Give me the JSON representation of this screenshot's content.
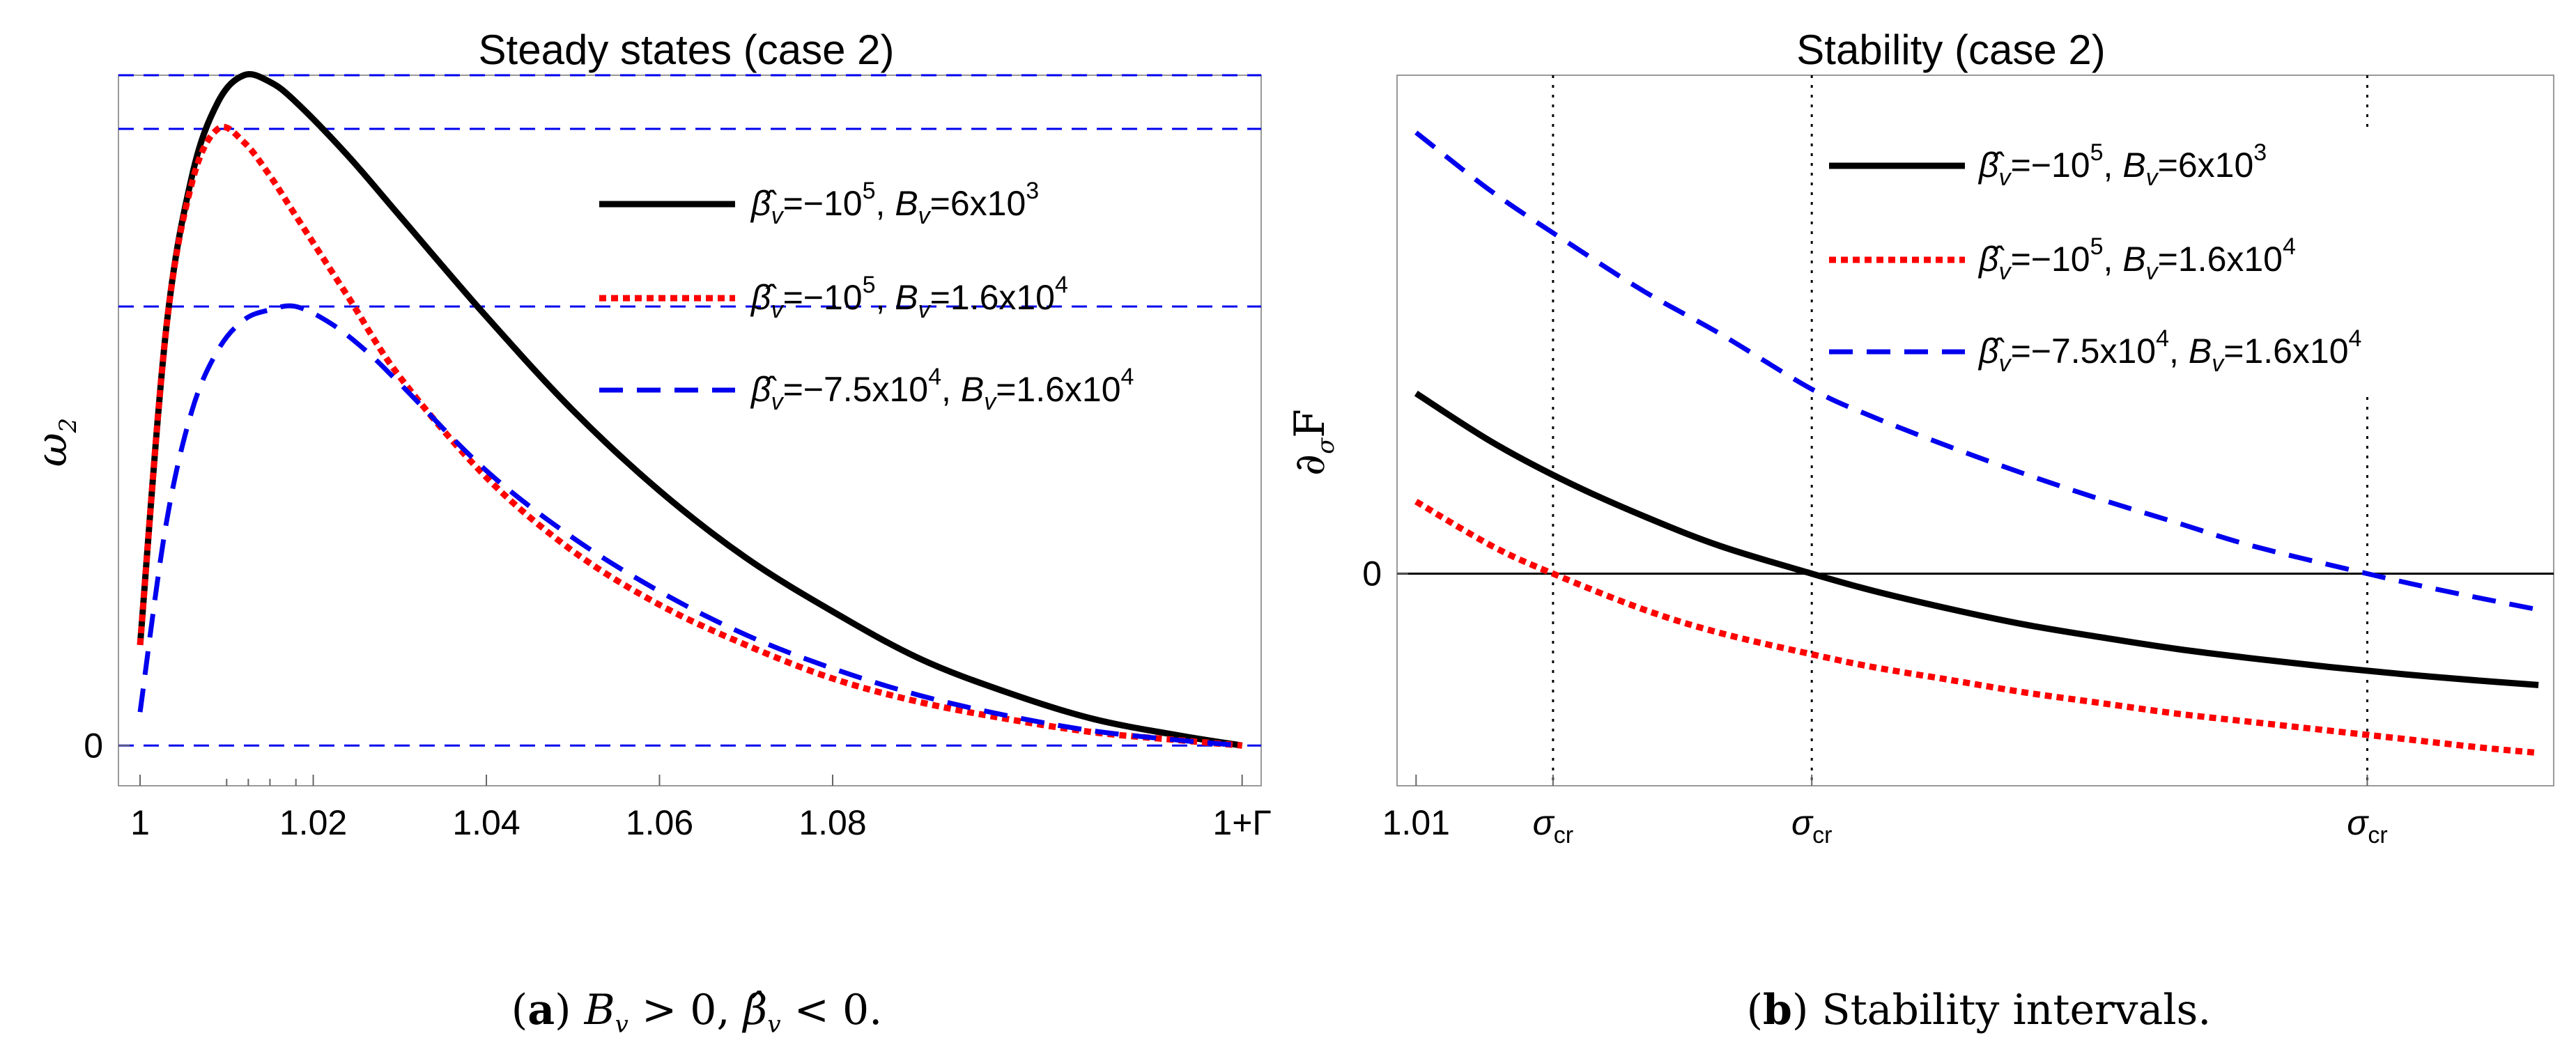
{
  "chart_data": [
    {
      "type": "line",
      "title": "Steady states (case 2)",
      "ylabel": "ω",
      "ylabel_sub": "2",
      "xlim": [
        0.9975,
        1.1295
      ],
      "ylim": [
        -0.06,
        1.0
      ],
      "x_ticks": [
        {
          "value": 1.0,
          "label": "1"
        },
        {
          "value": 1.02,
          "label": "1.02"
        },
        {
          "value": 1.04,
          "label": "1.04"
        },
        {
          "value": 1.06,
          "label": "1.06"
        },
        {
          "value": 1.08,
          "label": "1.08"
        },
        {
          "value": 1.1273,
          "label": "1+Γ"
        }
      ],
      "minor_x_ticks": [
        1.01,
        1.0125,
        1.015,
        1.018
      ],
      "y_ticks": [
        {
          "value": 0,
          "label": "0"
        }
      ],
      "hlines": [
        0,
        0.655,
        0.92,
        1.0
      ],
      "legend_position": "upper-right",
      "series": [
        {
          "name": "β̂v=−10^5, Bv=6x10^3",
          "legend_main": "=−10",
          "legend_exp": "5",
          "legend_b": "=6x10",
          "legend_b_exp": "3",
          "color": "#000000",
          "style": "solid",
          "x": [
            1.0,
            1.003,
            1.006,
            1.009,
            1.012,
            1.015,
            1.018,
            1.024,
            1.03,
            1.04,
            1.05,
            1.06,
            1.07,
            1.08,
            1.09,
            1.1,
            1.11,
            1.12,
            1.1273
          ],
          "y": [
            0.15,
            0.62,
            0.85,
            0.96,
            1.0,
            0.99,
            0.96,
            0.88,
            0.79,
            0.64,
            0.5,
            0.38,
            0.28,
            0.2,
            0.13,
            0.08,
            0.04,
            0.015,
            0.0
          ]
        },
        {
          "name": "β̂v=−10^5, Bv=1.6x10^4",
          "legend_main": "=−10",
          "legend_exp": "5",
          "legend_b": "=1.6x10",
          "legend_b_exp": "4",
          "color": "#ff0000",
          "style": "dotted",
          "x": [
            1.0,
            1.003,
            1.006,
            1.009,
            1.012,
            1.015,
            1.018,
            1.024,
            1.03,
            1.04,
            1.05,
            1.06,
            1.07,
            1.08,
            1.09,
            1.1,
            1.11,
            1.12,
            1.1273
          ],
          "y": [
            0.15,
            0.62,
            0.84,
            0.92,
            0.9,
            0.85,
            0.79,
            0.67,
            0.55,
            0.4,
            0.29,
            0.21,
            0.15,
            0.1,
            0.065,
            0.04,
            0.02,
            0.008,
            0.0
          ]
        },
        {
          "name": "β̂v=−7.5x10^4, Bv=1.6x10^4",
          "legend_main": "=−7.5x10",
          "legend_exp": "4",
          "legend_b": "=1.6x10",
          "legend_b_exp": "4",
          "color": "#0000ee",
          "style": "dashed",
          "x": [
            1.0,
            1.003,
            1.006,
            1.009,
            1.012,
            1.015,
            1.018,
            1.022,
            1.026,
            1.03,
            1.04,
            1.05,
            1.06,
            1.07,
            1.08,
            1.09,
            1.1,
            1.11,
            1.12,
            1.1273
          ],
          "y": [
            0.05,
            0.33,
            0.5,
            0.59,
            0.635,
            0.65,
            0.655,
            0.63,
            0.59,
            0.54,
            0.41,
            0.31,
            0.23,
            0.165,
            0.115,
            0.075,
            0.045,
            0.022,
            0.008,
            0.0
          ]
        }
      ],
      "caption": {
        "letter": "a",
        "text": "B",
        "sub1": "v",
        "mid": " > 0, ",
        "beta": "β̂",
        "sub2": "v",
        "end": " < 0."
      }
    },
    {
      "type": "line",
      "title": "Stability (case 2)",
      "ylabel": "∂",
      "ylabel_sub": "σ",
      "ylabel_end": "F",
      "xlim": [
        1.0075,
        1.1595
      ],
      "ylim": [
        -1.0,
        2.35
      ],
      "x_ticks": [
        {
          "value": 1.01,
          "label": "1.01"
        },
        {
          "value": 1.028,
          "label": "σ",
          "sub": "cr"
        },
        {
          "value": 1.062,
          "label": "σ",
          "sub": "cr"
        },
        {
          "value": 1.135,
          "label": "σ",
          "sub": "cr"
        }
      ],
      "y_ticks": [
        {
          "value": 0,
          "label": "0"
        }
      ],
      "zero_line": 0,
      "vlines": [
        1.028,
        1.062,
        1.135
      ],
      "legend_position": "upper-right",
      "series": [
        {
          "name": "β̂v=−10^5, Bv=6x10^3",
          "legend_main": "=−10",
          "legend_exp": "5",
          "legend_b": "=6x10",
          "legend_b_exp": "3",
          "color": "#000000",
          "style": "solid",
          "x": [
            1.01,
            1.02,
            1.03,
            1.04,
            1.05,
            1.062,
            1.07,
            1.08,
            1.09,
            1.1,
            1.11,
            1.12,
            1.13,
            1.14,
            1.15,
            1.1575
          ],
          "y": [
            0.85,
            0.62,
            0.43,
            0.27,
            0.13,
            0.0,
            -0.08,
            -0.165,
            -0.24,
            -0.3,
            -0.355,
            -0.4,
            -0.44,
            -0.475,
            -0.505,
            -0.525
          ]
        },
        {
          "name": "β̂v=−10^5, Bv=1.6x10^4",
          "legend_main": "=−10",
          "legend_exp": "5",
          "legend_b": "=1.6x10",
          "legend_b_exp": "4",
          "color": "#ff0000",
          "style": "dotted",
          "x": [
            1.01,
            1.02,
            1.028,
            1.04,
            1.05,
            1.062,
            1.07,
            1.08,
            1.09,
            1.1,
            1.11,
            1.12,
            1.13,
            1.14,
            1.15,
            1.1575
          ],
          "y": [
            0.34,
            0.13,
            0.0,
            -0.17,
            -0.28,
            -0.38,
            -0.44,
            -0.5,
            -0.56,
            -0.61,
            -0.66,
            -0.7,
            -0.74,
            -0.78,
            -0.82,
            -0.845
          ]
        },
        {
          "name": "β̂v=−7.5x10^4, Bv=1.6x10^4",
          "legend_main": "=−7.5x10",
          "legend_exp": "4",
          "legend_b": "=1.6x10",
          "legend_b_exp": "4",
          "color": "#0000ee",
          "style": "dashed",
          "x": [
            1.01,
            1.02,
            1.03,
            1.04,
            1.05,
            1.062,
            1.07,
            1.08,
            1.09,
            1.1,
            1.11,
            1.12,
            1.135,
            1.145,
            1.1575
          ],
          "y": [
            2.08,
            1.8,
            1.56,
            1.33,
            1.13,
            0.87,
            0.74,
            0.6,
            0.47,
            0.35,
            0.24,
            0.13,
            0.0,
            -0.08,
            -0.17
          ]
        }
      ],
      "caption": {
        "letter": "b",
        "text": "Stability intervals."
      }
    }
  ]
}
